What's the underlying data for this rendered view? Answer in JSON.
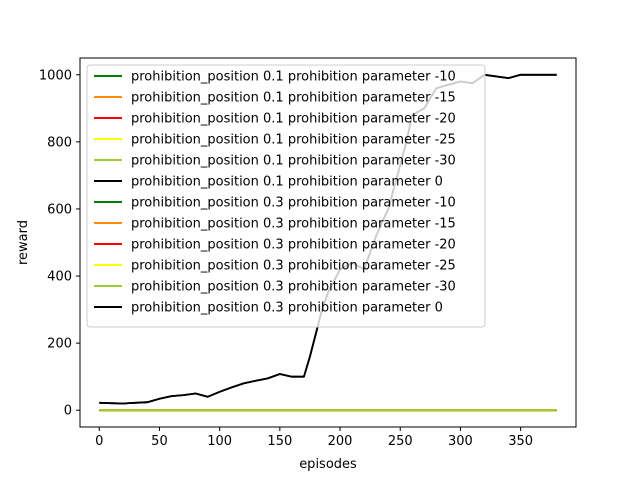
{
  "chart_data": {
    "type": "line",
    "title": "",
    "xlabel": "episodes",
    "ylabel": "reward",
    "xlim": [
      -16,
      396
    ],
    "ylim": [
      -50,
      1050
    ],
    "xticks": [
      0,
      50,
      100,
      150,
      200,
      250,
      300,
      350
    ],
    "yticks": [
      0,
      200,
      400,
      600,
      800,
      1000
    ],
    "grid": false,
    "legend_position": "upper-left",
    "series": [
      {
        "name": "prohibition_position 0.1 prohibition parameter -10",
        "color": "#008000",
        "x": [
          0,
          380
        ],
        "y": [
          0,
          0
        ]
      },
      {
        "name": "prohibition_position 0.1 prohibition parameter -15",
        "color": "#ff8c00",
        "x": [
          0,
          380
        ],
        "y": [
          0,
          0
        ]
      },
      {
        "name": "prohibition_position 0.1 prohibition parameter -20",
        "color": "#ff0000",
        "x": [
          0,
          380
        ],
        "y": [
          0,
          0
        ]
      },
      {
        "name": "prohibition_position 0.1 prohibition parameter -25",
        "color": "#ffff00",
        "x": [
          0,
          380
        ],
        "y": [
          0,
          0
        ]
      },
      {
        "name": "prohibition_position 0.1 prohibition parameter -30",
        "color": "#9acd32",
        "x": [
          0,
          380
        ],
        "y": [
          0,
          0
        ]
      },
      {
        "name": "prohibition_position 0.1 prohibition parameter 0",
        "color": "#000000",
        "x": [
          0,
          10,
          20,
          30,
          40,
          50,
          60,
          70,
          80,
          90,
          100,
          110,
          120,
          130,
          140,
          150,
          160,
          170,
          175,
          180,
          185,
          190,
          200,
          210,
          220,
          230,
          240,
          250,
          255,
          260,
          270,
          280,
          290,
          300,
          310,
          320,
          340,
          350,
          360,
          370,
          380
        ],
        "y": [
          22,
          21,
          20,
          22,
          24,
          34,
          42,
          45,
          50,
          40,
          55,
          68,
          80,
          88,
          95,
          108,
          100,
          100,
          160,
          230,
          300,
          350,
          420,
          440,
          420,
          520,
          600,
          730,
          800,
          880,
          900,
          960,
          970,
          980,
          975,
          1000,
          990,
          1000,
          1000,
          1000,
          1000
        ]
      },
      {
        "name": "prohibition_position 0.3 prohibition parameter -10",
        "color": "#008000",
        "x": [
          0,
          380
        ],
        "y": [
          0,
          0
        ]
      },
      {
        "name": "prohibition_position 0.3 prohibition parameter -15",
        "color": "#ff8c00",
        "x": [
          0,
          380
        ],
        "y": [
          0,
          0
        ]
      },
      {
        "name": "prohibition_position 0.3 prohibition parameter -20",
        "color": "#ff0000",
        "x": [
          0,
          380
        ],
        "y": [
          0,
          0
        ]
      },
      {
        "name": "prohibition_position 0.3 prohibition parameter -25",
        "color": "#ffff00",
        "x": [
          0,
          380
        ],
        "y": [
          0,
          0
        ]
      },
      {
        "name": "prohibition_position 0.3 prohibition parameter -30",
        "color": "#9acd32",
        "x": [
          0,
          380
        ],
        "y": [
          0,
          0
        ]
      },
      {
        "name": "prohibition_position 0.3 prohibition parameter 0",
        "color": "#000000",
        "x": [
          0,
          10,
          20,
          30,
          40,
          50,
          60,
          70,
          80,
          90,
          100,
          110,
          120,
          130,
          140,
          150,
          160,
          170,
          175,
          180,
          185,
          190,
          200,
          210,
          220,
          230,
          240,
          250,
          255,
          260,
          270,
          280,
          290,
          300,
          310,
          320,
          340,
          350,
          360,
          370,
          380
        ],
        "y": [
          22,
          21,
          20,
          22,
          24,
          34,
          42,
          45,
          50,
          40,
          55,
          68,
          80,
          88,
          95,
          108,
          100,
          100,
          160,
          230,
          300,
          350,
          420,
          440,
          420,
          520,
          600,
          730,
          800,
          880,
          900,
          960,
          970,
          980,
          975,
          1000,
          990,
          1000,
          1000,
          1000,
          1000
        ]
      }
    ]
  }
}
